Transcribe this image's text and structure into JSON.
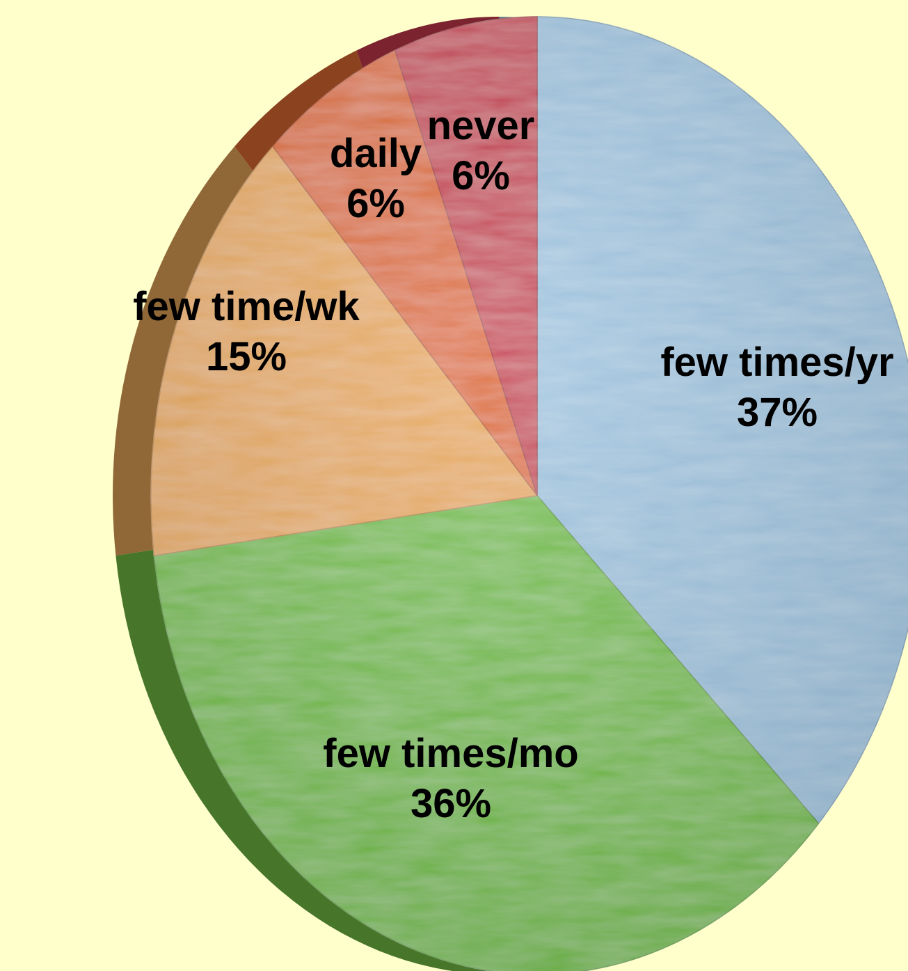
{
  "chart_data": {
    "type": "pie",
    "title": "",
    "start_angle_deg": -90,
    "direction": "clockwise",
    "colors": {
      "background": "#ffffcc",
      "side_shadow": "#5e7d2a"
    },
    "slices": [
      {
        "name": "few times/yr",
        "value": 37,
        "percent_label": "37%",
        "color": "#9cc3df"
      },
      {
        "name": "few times/mo",
        "value": 36,
        "percent_label": "36%",
        "color": "#72bf45"
      },
      {
        "name": "few time/wk",
        "value": 15,
        "percent_label": "15%",
        "color": "#e8a858"
      },
      {
        "name": "daily",
        "value": 6,
        "percent_label": "6%",
        "color": "#de6a32"
      },
      {
        "name": "never",
        "value": 6,
        "percent_label": "6%",
        "color": "#c63a4e"
      }
    ]
  }
}
